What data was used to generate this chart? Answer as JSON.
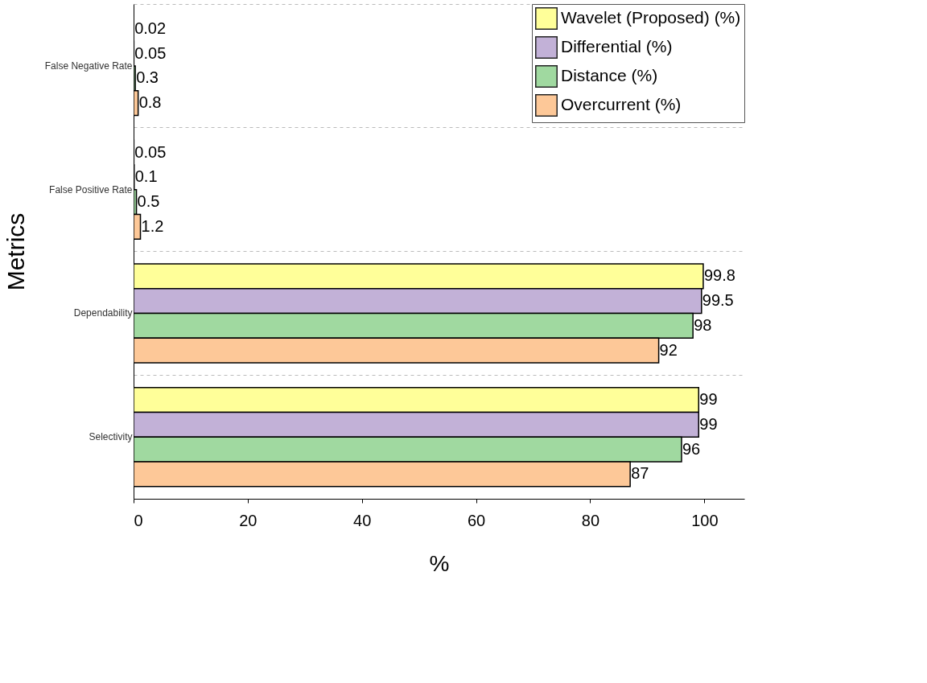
{
  "chart_data": {
    "type": "bar",
    "orientation": "horizontal",
    "xlabel": "%",
    "ylabel": "Metrics",
    "categories": [
      "False Negative Rate",
      "False Positive Rate",
      "Dependability",
      "Selectivity"
    ],
    "series": [
      {
        "name": "Wavelet (Proposed) (%)",
        "color": "#ffff99",
        "values": [
          0.02,
          0.05,
          99.8,
          99
        ]
      },
      {
        "name": "Differential (%)",
        "color": "#c2b1d7",
        "values": [
          0.05,
          0.1,
          99.5,
          99
        ]
      },
      {
        "name": "Distance (%)",
        "color": "#a0d9a0",
        "values": [
          0.3,
          0.5,
          98,
          96
        ]
      },
      {
        "name": "Overcurrent (%)",
        "color": "#fdc898",
        "values": [
          0.8,
          1.2,
          92,
          87
        ]
      }
    ],
    "xlim": [
      0,
      107
    ],
    "xticks": [
      0,
      20,
      40,
      60,
      80,
      100
    ],
    "grid": "y",
    "legend": "top right",
    "data_labels": true
  }
}
